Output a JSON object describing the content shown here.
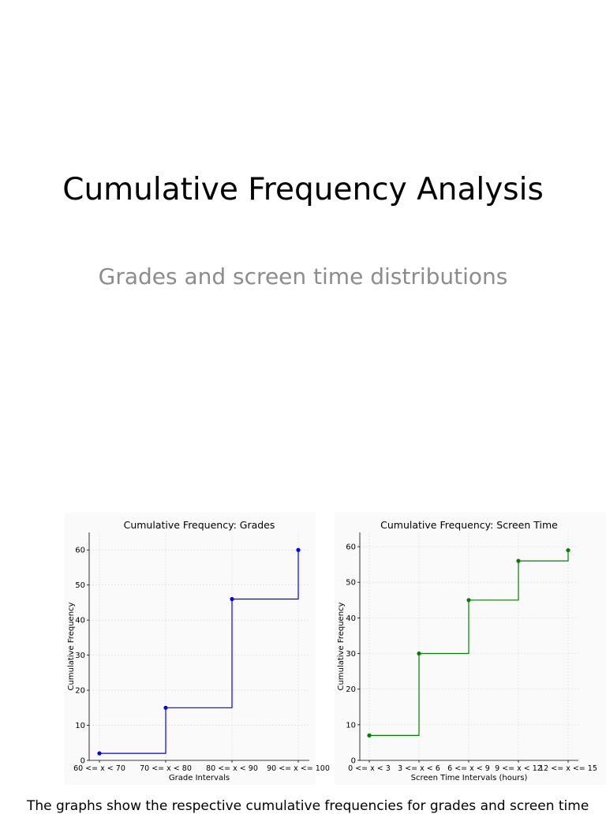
{
  "slide": {
    "title": "Cumulative Frequency Analysis",
    "subtitle": "Grades and screen time distributions",
    "footer": "The graphs show the respective cumulative frequencies for grades and screen time"
  },
  "chart_data": [
    {
      "type": "line",
      "step": "post",
      "title": "Cumulative Frequency: Grades",
      "xlabel": "Grade Intervals",
      "ylabel": "Cumulative Frequency",
      "categories": [
        "60 <= x < 70",
        "70 <= x < 80",
        "80 <= x < 90",
        "90 <= x <= 100"
      ],
      "values": [
        2,
        15,
        46,
        60
      ],
      "ylim": [
        0,
        65
      ],
      "yticks": [
        0,
        10,
        20,
        30,
        40,
        50,
        60
      ],
      "grid": true,
      "color": "#0000ff"
    },
    {
      "type": "line",
      "step": "post",
      "title": "Cumulative Frequency: Screen Time",
      "xlabel": "Screen Time Intervals (hours)",
      "ylabel": "Cumulative Frequency",
      "categories": [
        "0 <= x < 3",
        "3 <= x < 6",
        "6 <= x < 9",
        "9 <= x < 12",
        "12 <= x <= 15"
      ],
      "values": [
        7,
        30,
        45,
        56,
        59
      ],
      "ylim": [
        0,
        64
      ],
      "yticks": [
        0,
        10,
        20,
        30,
        40,
        50,
        60
      ],
      "grid": true,
      "color": "#008000"
    }
  ]
}
